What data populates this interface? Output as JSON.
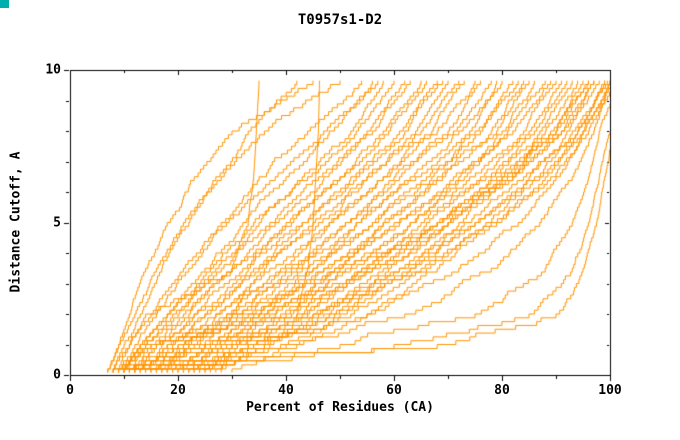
{
  "chart_data": {
    "type": "line",
    "title": "T0957s1-D2",
    "xlabel": "Percent of Residues (CA)",
    "ylabel": "Distance Cutoff, A",
    "xlim": [
      0,
      100
    ],
    "ylim": [
      0,
      10
    ],
    "x_ticks": [
      0,
      20,
      40,
      60,
      80,
      100
    ],
    "x_minor_ticks": [
      10,
      30,
      50,
      70,
      90
    ],
    "y_ticks": [
      0,
      5,
      10
    ],
    "y_minor_ticks": [
      1,
      2,
      3,
      4,
      6,
      7,
      8,
      9
    ],
    "grid": false,
    "legend_position": "none",
    "line_color": "#FF9500",
    "axis_color": "#000000",
    "series_format": "x_percent_at_each_y_anchor_level",
    "y_anchor_levels": [
      0.2,
      1,
      2,
      3.5,
      5,
      6.5,
      8,
      9.65
    ],
    "series": [
      [
        9,
        11,
        14,
        30,
        33,
        34,
        34.5,
        35
      ],
      [
        10,
        13,
        42,
        44,
        45,
        45.5,
        46,
        46.2
      ],
      [
        8,
        10,
        13,
        17,
        22,
        27,
        33,
        42
      ],
      [
        7,
        9,
        12,
        16,
        21,
        28,
        36,
        50
      ],
      [
        9,
        12,
        16,
        22,
        28,
        35,
        44,
        54
      ],
      [
        10,
        13,
        18,
        25,
        32,
        40,
        48,
        56
      ],
      [
        8,
        11,
        15,
        21,
        29,
        38,
        47,
        57
      ],
      [
        11,
        14,
        19,
        27,
        35,
        43,
        52,
        58
      ],
      [
        9,
        13,
        18,
        26,
        34,
        44,
        53,
        60
      ],
      [
        12,
        16,
        22,
        30,
        38,
        47,
        55,
        62
      ],
      [
        10,
        14,
        20,
        28,
        37,
        46,
        56,
        63
      ],
      [
        13,
        17,
        23,
        32,
        41,
        50,
        58,
        65
      ],
      [
        11,
        15,
        21,
        30,
        40,
        50,
        59,
        66
      ],
      [
        14,
        18,
        25,
        34,
        43,
        52,
        61,
        68
      ],
      [
        12,
        16,
        23,
        33,
        43,
        53,
        62,
        69
      ],
      [
        15,
        20,
        27,
        36,
        46,
        55,
        64,
        70
      ],
      [
        13,
        18,
        25,
        35,
        45,
        55,
        65,
        72
      ],
      [
        16,
        21,
        29,
        39,
        48,
        58,
        67,
        73
      ],
      [
        14,
        19,
        27,
        37,
        48,
        58,
        68,
        75
      ],
      [
        17,
        22,
        30,
        41,
        51,
        60,
        70,
        76
      ],
      [
        15,
        21,
        29,
        40,
        51,
        61,
        71,
        78
      ],
      [
        18,
        24,
        32,
        43,
        53,
        63,
        72,
        79
      ],
      [
        16,
        22,
        31,
        42,
        53,
        64,
        74,
        80
      ],
      [
        19,
        25,
        34,
        45,
        56,
        66,
        75,
        82
      ],
      [
        17,
        23,
        33,
        45,
        56,
        67,
        76,
        83
      ],
      [
        20,
        27,
        36,
        47,
        58,
        68,
        78,
        84
      ],
      [
        18,
        25,
        35,
        47,
        58,
        69,
        79,
        85
      ],
      [
        21,
        28,
        38,
        49,
        60,
        71,
        80,
        86
      ],
      [
        19,
        26,
        37,
        49,
        61,
        72,
        81,
        88
      ],
      [
        22,
        30,
        40,
        52,
        63,
        73,
        82,
        89
      ],
      [
        20,
        28,
        39,
        51,
        63,
        74,
        84,
        90
      ],
      [
        23,
        31,
        42,
        54,
        65,
        76,
        85,
        91
      ],
      [
        21,
        29,
        41,
        54,
        66,
        77,
        86,
        92
      ],
      [
        24,
        33,
        44,
        56,
        68,
        78,
        87,
        93
      ],
      [
        22,
        31,
        43,
        56,
        68,
        79,
        88,
        94
      ],
      [
        25,
        34,
        46,
        59,
        70,
        80,
        89,
        95
      ],
      [
        23,
        33,
        45,
        58,
        70,
        81,
        90,
        96
      ],
      [
        26,
        36,
        48,
        61,
        72,
        82,
        91,
        97
      ],
      [
        24,
        34,
        47,
        61,
        73,
        84,
        92,
        98
      ],
      [
        27,
        37,
        50,
        63,
        75,
        85,
        93,
        99
      ],
      [
        25,
        36,
        49,
        63,
        75,
        86,
        94,
        99.5
      ],
      [
        28,
        39,
        52,
        66,
        77,
        87,
        95,
        100
      ],
      [
        30,
        42,
        55,
        68,
        79,
        89,
        96,
        100.5
      ],
      [
        12,
        20,
        35,
        55,
        70,
        82,
        91,
        97
      ],
      [
        8,
        15,
        30,
        50,
        68,
        80,
        90,
        96
      ],
      [
        10,
        25,
        45,
        65,
        78,
        88,
        94,
        99
      ],
      [
        9,
        30,
        55,
        72,
        83,
        90,
        95,
        100
      ],
      [
        11,
        40,
        62,
        78,
        87,
        93,
        97,
        101
      ],
      [
        8,
        50,
        75,
        88,
        93,
        96,
        98,
        102
      ],
      [
        10,
        60,
        85,
        93,
        96,
        98,
        100,
        103
      ],
      [
        12,
        68,
        90,
        95,
        97.5,
        99,
        100.5,
        104
      ],
      [
        7,
        9,
        11,
        14,
        18,
        23,
        30,
        45
      ]
    ]
  },
  "decorations": {
    "corner_marker_color": "#00AEAE",
    "background_color": "#FFFFFF"
  }
}
